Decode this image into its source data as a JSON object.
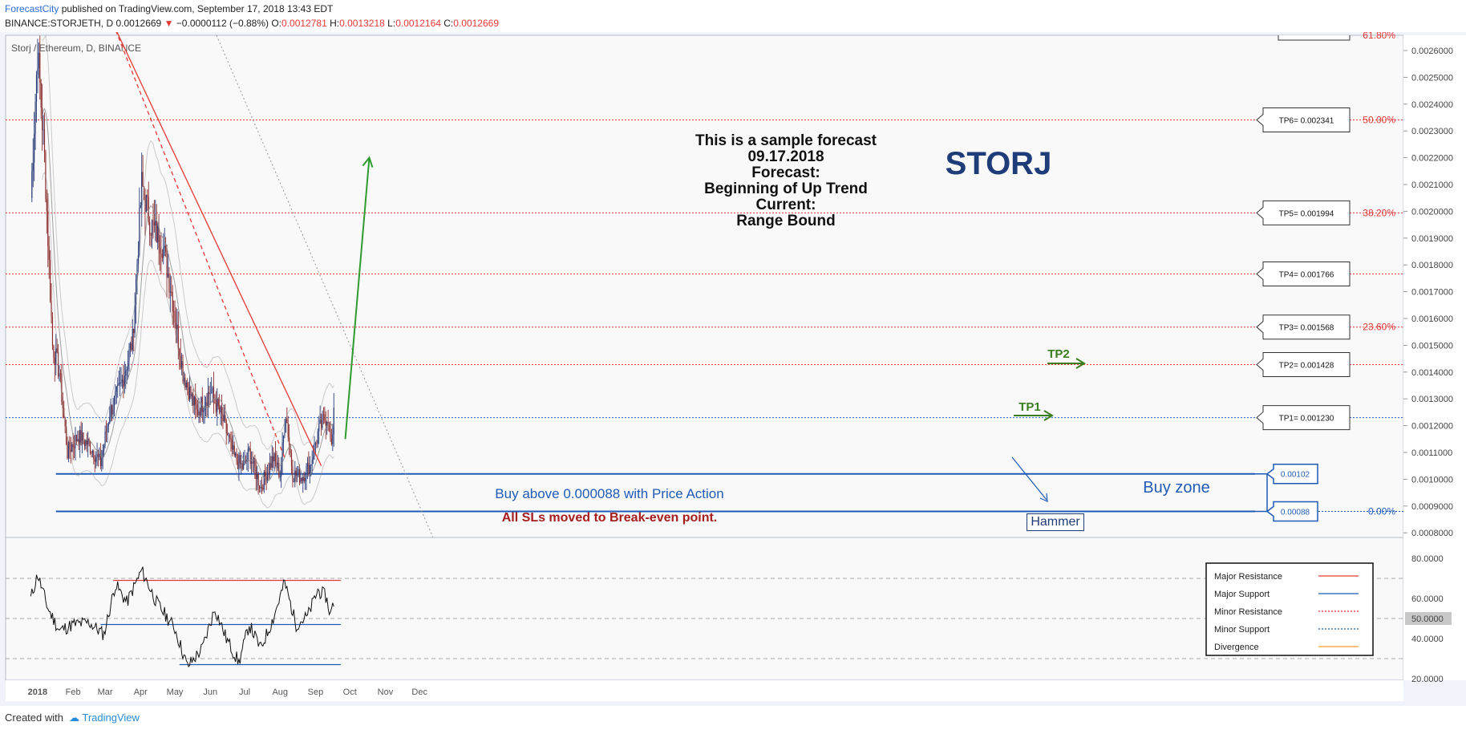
{
  "header": {
    "publisher": "ForecastCity",
    "published_text": " published on TradingView.com, September 17, 2018 13:43 EDT",
    "symbol_line": "BINANCE:STORJETH, D",
    "last": "0.0012669",
    "change": "−0.0000112 (−0.88%)",
    "o_label": "O:",
    "o_value": "0.0012781",
    "h_label": "H:",
    "h_value": "0.0013218",
    "l_label": "L:",
    "l_value": "0.0012164",
    "c_label": "C:",
    "c_value": "0.0012669"
  },
  "footer": {
    "created_with": "Created with",
    "tradingview": "TradingView"
  },
  "annotations": {
    "forecast_lines": [
      "This is a sample forecast",
      "09.17.2018",
      "Forecast:",
      "Beginning of Up Trend",
      "Current:",
      "Range Bound"
    ],
    "ticker": "STORJ",
    "buy_zone": "Buy zone",
    "buy_above": "Buy above 0.000088 with Price Action",
    "sl_note": "All SLs moved to Break-even point.",
    "hammer": "Hammer",
    "tp1_arrow": "TP1",
    "tp2_arrow": "TP2"
  },
  "chart_data": [
    {
      "type": "candlestick",
      "title": "Storj / Ethereum, D, BINANCE",
      "xlabel": "",
      "ylabel": "",
      "x_ticks": [
        "2018",
        "Feb",
        "Mar",
        "Apr",
        "May",
        "Jun",
        "Jul",
        "Aug",
        "Sep",
        "Oct",
        "Nov",
        "Dec"
      ],
      "y_ticks": [
        "0.0026000",
        "0.0025000",
        "0.0024000",
        "0.0023000",
        "0.0022000",
        "0.0021000",
        "0.0020000",
        "0.0019000",
        "0.0018000",
        "0.0017000",
        "0.0016000",
        "0.0015000",
        "0.0014000",
        "0.0013000",
        "0.0012000",
        "0.0011000",
        "0.0010000",
        "0.0009000",
        "0.0008000"
      ],
      "ylim": [
        0.00079,
        0.0027
      ],
      "grid": false,
      "price_waypoints": [
        {
          "date": "2017-12-26",
          "close": 0.00205
        },
        {
          "date": "2018-01-01",
          "close": 0.0026
        },
        {
          "date": "2018-01-07",
          "close": 0.0022
        },
        {
          "date": "2018-01-14",
          "close": 0.0015
        },
        {
          "date": "2018-01-20",
          "close": 0.0014
        },
        {
          "date": "2018-01-27",
          "close": 0.0011
        },
        {
          "date": "2018-02-05",
          "close": 0.00116
        },
        {
          "date": "2018-02-15",
          "close": 0.00113
        },
        {
          "date": "2018-02-25",
          "close": 0.00106
        },
        {
          "date": "2018-03-05",
          "close": 0.00125
        },
        {
          "date": "2018-03-15",
          "close": 0.00135
        },
        {
          "date": "2018-03-25",
          "close": 0.00152
        },
        {
          "date": "2018-04-02",
          "close": 0.0021
        },
        {
          "date": "2018-04-10",
          "close": 0.00195
        },
        {
          "date": "2018-04-20",
          "close": 0.00188
        },
        {
          "date": "2018-04-28",
          "close": 0.0017
        },
        {
          "date": "2018-05-08",
          "close": 0.0014
        },
        {
          "date": "2018-05-20",
          "close": 0.00125
        },
        {
          "date": "2018-06-01",
          "close": 0.00133
        },
        {
          "date": "2018-06-12",
          "close": 0.00122
        },
        {
          "date": "2018-06-22",
          "close": 0.00108
        },
        {
          "date": "2018-06-30",
          "close": 0.00104
        },
        {
          "date": "2018-07-05",
          "close": 0.0011
        },
        {
          "date": "2018-07-15",
          "close": 0.00097
        },
        {
          "date": "2018-07-26",
          "close": 0.00108
        },
        {
          "date": "2018-08-01",
          "close": 0.00102
        },
        {
          "date": "2018-08-06",
          "close": 0.00125
        },
        {
          "date": "2018-08-12",
          "close": 0.00102
        },
        {
          "date": "2018-08-20",
          "close": 0.00101
        },
        {
          "date": "2018-08-27",
          "close": 0.00105
        },
        {
          "date": "2018-09-03",
          "close": 0.00117
        },
        {
          "date": "2018-09-08",
          "close": 0.00122
        },
        {
          "date": "2018-09-12",
          "close": 0.00124
        },
        {
          "date": "2018-09-15",
          "close": 0.0011
        },
        {
          "date": "2018-09-17",
          "close": 0.0012669
        }
      ],
      "fib_levels": [
        {
          "label": "61.80%",
          "value": 0.00271
        },
        {
          "label": "50.00%",
          "value": 0.002341
        },
        {
          "label": "38.20%",
          "value": 0.001994
        },
        {
          "label": "23.60%",
          "value": 0.001568
        },
        {
          "label": "0.00%",
          "value": 0.00088
        }
      ],
      "extra_dotted_levels": [
        0.001766,
        0.001428,
        0.00123
      ],
      "targets": [
        {
          "label": "TP6= 0.002341",
          "value": 0.002341
        },
        {
          "label": "TP5= 0.001994",
          "value": 0.001994
        },
        {
          "label": "TP4= 0.001766",
          "value": 0.001766
        },
        {
          "label": "TP3= 0.001568",
          "value": 0.001568
        },
        {
          "label": "TP2= 0.001428",
          "value": 0.001428
        },
        {
          "label": "TP1= 0.001230",
          "value": 0.00123
        }
      ],
      "buy_zone": {
        "top": 0.00102,
        "bottom": 0.00088,
        "top_label": "0.00102",
        "bottom_label": "0.00088"
      },
      "trendlines": {
        "resistance_solid": {
          "from": {
            "date": "2018-03-08",
            "value": 0.0027
          },
          "to": {
            "date": "2018-09-06",
            "value": 0.00105
          }
        },
        "resistance_dotted": {
          "from": {
            "date": "2018-03-08",
            "value": 0.0027
          },
          "to": {
            "date": "2018-08-05",
            "value": 0.00108
          }
        },
        "projection_arrow": {
          "from": {
            "date": "2018-09-27",
            "value": 0.00115
          },
          "to": {
            "date": "2018-10-18",
            "value": 0.0022
          }
        }
      },
      "colors": {
        "up": "#2d3f7a",
        "down": "#8e2f2f",
        "resistance": "#e53935",
        "support": "#1f5bb5",
        "projection": "#2e9b2e",
        "tp_arrow": "#3a7d1e"
      }
    },
    {
      "type": "line",
      "title": "",
      "y_ticks": [
        "80.0000",
        "60.0000",
        "50.0000",
        "40.0000",
        "20.0000"
      ],
      "ylim": [
        12,
        86
      ],
      "dashed_levels": [
        70,
        50,
        30
      ],
      "waypoints": [
        {
          "date": "2017-12-26",
          "value": 60
        },
        {
          "date": "2018-01-01",
          "value": 72
        },
        {
          "date": "2018-01-10",
          "value": 55
        },
        {
          "date": "2018-01-20",
          "value": 44
        },
        {
          "date": "2018-02-01",
          "value": 47
        },
        {
          "date": "2018-02-15",
          "value": 48
        },
        {
          "date": "2018-02-28",
          "value": 42
        },
        {
          "date": "2018-03-10",
          "value": 67
        },
        {
          "date": "2018-03-20",
          "value": 58
        },
        {
          "date": "2018-04-02",
          "value": 74
        },
        {
          "date": "2018-04-15",
          "value": 58
        },
        {
          "date": "2018-05-01",
          "value": 45
        },
        {
          "date": "2018-05-12",
          "value": 26
        },
        {
          "date": "2018-05-25",
          "value": 35
        },
        {
          "date": "2018-06-05",
          "value": 55
        },
        {
          "date": "2018-06-15",
          "value": 40
        },
        {
          "date": "2018-06-26",
          "value": 28
        },
        {
          "date": "2018-07-05",
          "value": 47
        },
        {
          "date": "2018-07-15",
          "value": 35
        },
        {
          "date": "2018-07-26",
          "value": 50
        },
        {
          "date": "2018-08-05",
          "value": 68
        },
        {
          "date": "2018-08-15",
          "value": 47
        },
        {
          "date": "2018-08-25",
          "value": 51
        },
        {
          "date": "2018-09-03",
          "value": 64
        },
        {
          "date": "2018-09-10",
          "value": 61
        },
        {
          "date": "2018-09-14",
          "value": 52
        },
        {
          "date": "2018-09-17",
          "value": 58
        }
      ],
      "horizontal_lines": [
        {
          "role": "Major Resistance",
          "value": 69,
          "from": "2018-03-08",
          "to": "2018-09-23"
        },
        {
          "role": "Major Support",
          "value": 47,
          "from": "2018-02-25",
          "to": "2018-09-23"
        },
        {
          "role": "Major Support",
          "value": 27,
          "from": "2018-05-05",
          "to": "2018-09-23"
        }
      ],
      "legend": {
        "placement": "right",
        "items": [
          {
            "name": "Major Resistance",
            "color": "#e53935",
            "style": "solid"
          },
          {
            "name": "Major Support",
            "color": "#1f5bb5",
            "style": "solid"
          },
          {
            "name": "Minor Resistance",
            "color": "#e53935",
            "style": "dotted"
          },
          {
            "name": "Minor Support",
            "color": "#1f5bb5",
            "style": "dotted"
          },
          {
            "name": "Divergence",
            "color": "#f0a020",
            "style": "solid"
          }
        ]
      }
    }
  ]
}
